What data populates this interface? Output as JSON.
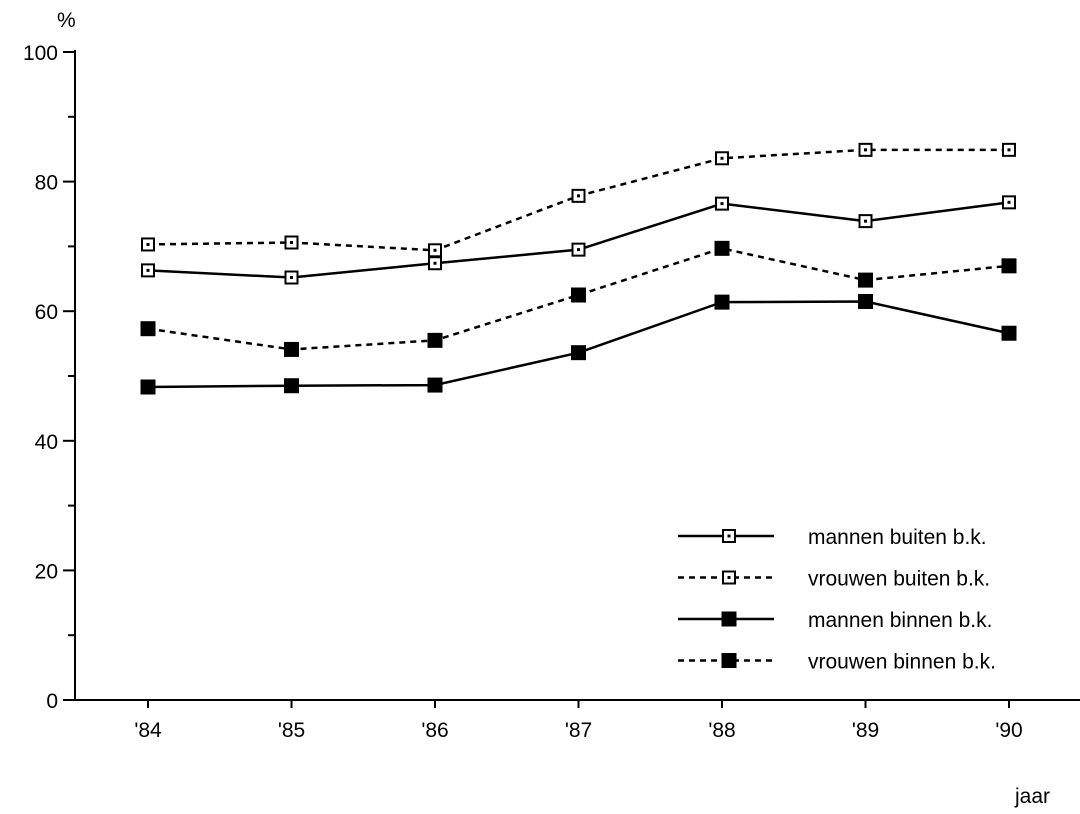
{
  "chart_data": {
    "type": "line",
    "title": "",
    "xlabel": "jaar",
    "ylabel": "%",
    "categories": [
      "'84",
      "'85",
      "'86",
      "'87",
      "'88",
      "'89",
      "'90"
    ],
    "ylim": [
      0,
      100
    ],
    "yticks": [
      0,
      20,
      40,
      60,
      80,
      100
    ],
    "grid": false,
    "legend_position": "bottom-right",
    "series": [
      {
        "name": "mannen buiten b.k.",
        "values": [
          66.3,
          65.2,
          67.4,
          69.5,
          76.6,
          73.9,
          76.8
        ],
        "line_style": "solid",
        "marker": "open-square"
      },
      {
        "name": "vrouwen buiten b.k.",
        "values": [
          70.3,
          70.6,
          69.4,
          77.8,
          83.6,
          84.9,
          84.9
        ],
        "line_style": "dashed",
        "marker": "open-square"
      },
      {
        "name": "mannen binnen b.k.",
        "values": [
          48.3,
          48.5,
          48.6,
          53.6,
          61.4,
          61.5,
          56.6
        ],
        "line_style": "solid",
        "marker": "filled-square"
      },
      {
        "name": "vrouwen binnen b.k.",
        "values": [
          57.3,
          54.1,
          55.5,
          62.5,
          69.7,
          64.8,
          67.0
        ],
        "line_style": "dashed",
        "marker": "filled-square"
      }
    ]
  }
}
